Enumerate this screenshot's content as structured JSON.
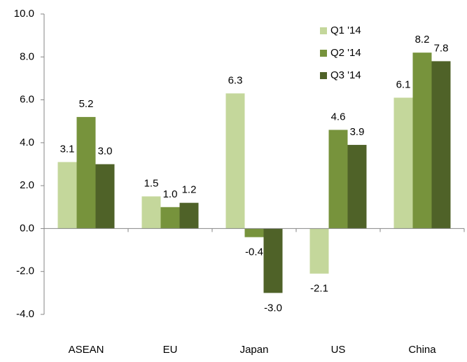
{
  "chart_data": {
    "type": "bar",
    "categories": [
      "ASEAN",
      "EU",
      "Japan",
      "US",
      "China"
    ],
    "series": [
      {
        "name": "Q1 '14",
        "color": "#c4d79b",
        "values": [
          3.1,
          1.5,
          6.3,
          -2.1,
          6.1
        ],
        "value_labels": [
          "3.1",
          "1.5",
          "6.3",
          "-2.1",
          "6.1"
        ]
      },
      {
        "name": "Q2 '14",
        "color": "#77933c",
        "values": [
          5.2,
          1.0,
          -0.4,
          4.6,
          8.2
        ],
        "value_labels": [
          "5.2",
          "1.0",
          "-0.4",
          "4.6",
          "8.2"
        ]
      },
      {
        "name": "Q3 '14",
        "color": "#4f6228",
        "values": [
          3.0,
          1.2,
          -3.0,
          3.9,
          7.8
        ],
        "value_labels": [
          "3.0",
          "1.2",
          "-3.0",
          "3.9",
          "7.8"
        ]
      }
    ],
    "ylim": [
      -4,
      10
    ],
    "yticks": [
      {
        "value": -4,
        "label": "-4.0"
      },
      {
        "value": -2,
        "label": "-2.0"
      },
      {
        "value": 0,
        "label": "0.0"
      },
      {
        "value": 2,
        "label": "2.0"
      },
      {
        "value": 4,
        "label": "4.0"
      },
      {
        "value": 6,
        "label": "6.0"
      },
      {
        "value": 8,
        "label": "8.0"
      },
      {
        "value": 10,
        "label": "10.0"
      }
    ],
    "grid": false,
    "legend": "top-right"
  }
}
